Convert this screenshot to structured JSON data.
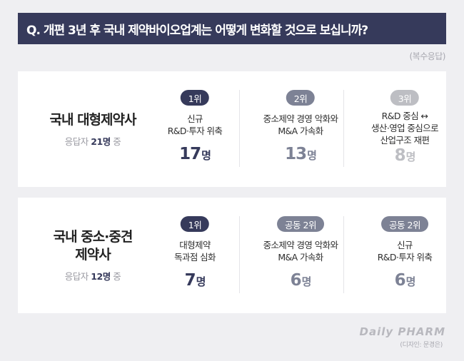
{
  "title": "Q. 개편 3년 후 국내 제약바이오업계는 어떻게 변화할 것으로 보십니까?",
  "note": "(복수응답)",
  "groups": [
    {
      "name_lines": [
        "국내 대형제약사"
      ],
      "respondents": {
        "prefix": "응답자",
        "count": "21명",
        "suffix": "중"
      },
      "items": [
        {
          "rank": "1위",
          "text_lines": [
            "신규",
            "R&D·투자 위축"
          ],
          "count": "17",
          "unit": "명"
        },
        {
          "rank": "2위",
          "text_lines": [
            "중소제약 경영 악화와",
            "M&A 가속화"
          ],
          "count": "13",
          "unit": "명"
        },
        {
          "rank": "3위",
          "text_lines": [
            "R&D 중심 ↔",
            "생산·영업 중심으로",
            "산업구조 재편"
          ],
          "count": "8",
          "unit": "명"
        }
      ]
    },
    {
      "name_lines": [
        "국내 중소·중견",
        "제약사"
      ],
      "respondents": {
        "prefix": "응답자",
        "count": "12명",
        "suffix": "중"
      },
      "items": [
        {
          "rank": "1위",
          "text_lines": [
            "대형제약",
            "독과점 심화"
          ],
          "count": "7",
          "unit": "명"
        },
        {
          "rank": "공동 2위",
          "text_lines": [
            "중소제약 경영 악화와",
            "M&A 가속화"
          ],
          "count": "6",
          "unit": "명"
        },
        {
          "rank": "공동 2위",
          "text_lines": [
            "신규",
            "R&D·투자 위축"
          ],
          "count": "6",
          "unit": "명"
        }
      ]
    }
  ],
  "logo_text": "Daily PHARM",
  "credit": "(디자인: 문경은)",
  "colors": {
    "navy": "#363a5b",
    "gray": "#7d8295",
    "light_gray": "#bdbec3",
    "background": "#efeff2"
  }
}
